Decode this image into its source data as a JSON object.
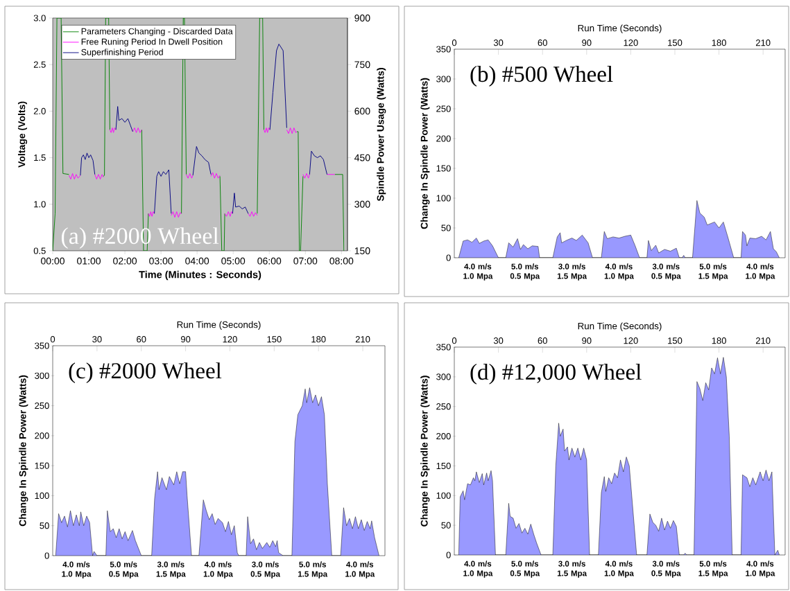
{
  "chart_data": [
    {
      "type": "line",
      "title": "(a) #2000 Wheel",
      "xlabel": "Time (Minutes : Seconds)",
      "ylabel": "Voltage (Volts)",
      "y2label": "Spindle Power Usage (Watts)",
      "xlim": [
        0,
        490
      ],
      "ylim": [
        0.5,
        3.0
      ],
      "y2lim": [
        150,
        900
      ],
      "xticks": [
        {
          "value": 0,
          "label": "00:00"
        },
        {
          "value": 60,
          "label": "01:00"
        },
        {
          "value": 120,
          "label": "02:00"
        },
        {
          "value": 180,
          "label": "03:00"
        },
        {
          "value": 240,
          "label": "04:00"
        },
        {
          "value": 300,
          "label": "05:00"
        },
        {
          "value": 360,
          "label": "06:00"
        },
        {
          "value": 420,
          "label": "07:00"
        },
        {
          "value": 480,
          "label": "08:00"
        }
      ],
      "yticks": [
        0.5,
        {
          "value": 1,
          "label": "1.0"
        },
        1.5,
        {
          "value": 2,
          "label": "2.0"
        },
        2.5,
        {
          "value": 3,
          "label": "3.0"
        }
      ],
      "y2ticks": [
        150,
        300,
        450,
        600,
        750,
        900
      ],
      "legend": "top left",
      "series": [
        {
          "name": "Parameters Changing - Discarded Data",
          "color": "#008000",
          "x": [
            0,
            4,
            7,
            14,
            17,
            27,
            27.5,
            84,
            86,
            88,
            93,
            95,
            95.5,
            148,
            151,
            157,
            159,
            159.5,
            214,
            217,
            219,
            222,
            222.5,
            278,
            281,
            285,
            286,
            286.5,
            340,
            344,
            349,
            351,
            351.5,
            406,
            408,
            410,
            412,
            416,
            416.5,
            469,
            482,
            484
          ],
          "values": [
            0.5,
            0.9,
            3.0,
            3.0,
            1.33,
            1.32,
            null,
            1.3,
            1.31,
            3.0,
            3.0,
            1.8,
            null,
            1.8,
            0.5,
            0.5,
            0.9,
            null,
            0.9,
            3.0,
            3.0,
            1.32,
            null,
            1.3,
            0.5,
            0.5,
            0.9,
            null,
            0.9,
            3.0,
            3.0,
            1.8,
            null,
            1.78,
            1.78,
            0.5,
            0.5,
            1.3,
            null,
            1.32,
            1.32,
            0.5
          ]
        },
        {
          "name": "Free Runing Period In Dwell Position",
          "color": "#ff00ff",
          "x": [
            27,
            30,
            33,
            36,
            39,
            42,
            46,
            46.5,
            70,
            73,
            76,
            79,
            82,
            84,
            84.5,
            95,
            97,
            99,
            101,
            103,
            105,
            105.5,
            133,
            136,
            139,
            142,
            145,
            148,
            148.5,
            159,
            161,
            163,
            165,
            167,
            169,
            169.5,
            197,
            200,
            203,
            206,
            209,
            212,
            214,
            214.5,
            222,
            225,
            228,
            231,
            233,
            233.5,
            263,
            266,
            269,
            272,
            275,
            278,
            278.5,
            286,
            289,
            292,
            295,
            297,
            299,
            299.5,
            325,
            328,
            331,
            334,
            337,
            340,
            340.5,
            351,
            353,
            355,
            357,
            359,
            361,
            361.5,
            389,
            392,
            395,
            398,
            401,
            404,
            406,
            406.5,
            416,
            419,
            422,
            425,
            427,
            427.5,
            456,
            469
          ],
          "values": [
            1.31,
            1.27,
            1.33,
            1.27,
            1.32,
            1.28,
            1.31,
            null,
            1.32,
            1.27,
            1.32,
            1.27,
            1.32,
            1.29,
            null,
            1.8,
            1.77,
            1.82,
            1.77,
            1.82,
            1.8,
            null,
            1.78,
            1.82,
            1.77,
            1.82,
            1.77,
            1.8,
            null,
            0.9,
            0.87,
            0.92,
            0.87,
            0.92,
            0.9,
            null,
            0.88,
            0.92,
            0.86,
            0.92,
            0.86,
            0.91,
            0.9,
            null,
            1.32,
            1.28,
            1.33,
            1.28,
            1.31,
            null,
            1.3,
            1.34,
            1.28,
            1.33,
            1.28,
            1.31,
            null,
            0.9,
            0.87,
            0.92,
            0.87,
            0.92,
            0.9,
            null,
            0.9,
            0.87,
            0.92,
            0.87,
            0.91,
            0.88,
            null,
            1.8,
            1.77,
            1.82,
            1.77,
            1.82,
            1.8,
            null,
            1.8,
            1.76,
            1.82,
            1.76,
            1.82,
            1.77,
            1.78,
            null,
            1.32,
            1.28,
            1.33,
            1.28,
            1.32,
            null,
            1.32,
            1.32
          ]
        },
        {
          "name": "Superfinishing Period",
          "color": "#000080",
          "x": [
            46,
            48,
            51,
            54,
            57,
            60,
            63,
            67,
            70,
            70.5,
            105,
            108,
            110,
            115,
            120,
            125,
            129,
            133,
            133.5,
            169,
            173,
            176,
            180,
            184,
            188,
            193,
            197,
            197.5,
            233,
            239,
            243,
            248,
            253,
            259,
            263,
            263.5,
            299,
            302,
            304,
            310,
            315,
            320,
            325,
            325.5,
            361,
            366,
            372,
            376,
            380,
            383,
            389,
            389.5,
            427,
            430,
            435,
            440,
            445,
            450,
            456
          ],
          "values": [
            1.31,
            1.5,
            1.53,
            1.48,
            1.55,
            1.5,
            1.53,
            1.47,
            1.32,
            null,
            1.8,
            2.05,
            1.9,
            1.92,
            1.88,
            1.92,
            1.85,
            1.78,
            null,
            0.9,
            1.3,
            1.35,
            1.3,
            1.35,
            1.32,
            1.37,
            0.9,
            null,
            1.31,
            1.62,
            1.55,
            1.52,
            1.48,
            1.45,
            1.32,
            null,
            0.9,
            1.12,
            0.97,
            0.98,
            0.95,
            0.97,
            0.9,
            null,
            1.8,
            2.2,
            2.65,
            2.72,
            2.68,
            2.65,
            1.82,
            null,
            1.32,
            1.57,
            1.52,
            1.5,
            1.52,
            1.48,
            1.32
          ]
        }
      ]
    },
    {
      "type": "area",
      "title": "(b) #500 Wheel",
      "xlabel": "Run Time (Seconds)",
      "ylabel": "Change In Spindle Power (Watts)",
      "xlim": [
        0,
        225
      ],
      "ylim": [
        0,
        350
      ],
      "xticks": [
        0,
        30,
        60,
        90,
        120,
        150,
        180,
        210
      ],
      "yticks": [
        0,
        50,
        100,
        150,
        200,
        250,
        300,
        350
      ],
      "annotations": [
        {
          "text": "4.0 m/s 1.0 Mpa",
          "x": 16,
          "y": 0
        },
        {
          "text": "5.0 m/s 0.5 Mpa",
          "x": 48,
          "y": 0
        },
        {
          "text": "3.0 m/s 1.5 Mpa",
          "x": 80,
          "y": 0
        },
        {
          "text": "4.0 m/s 1.0 Mpa",
          "x": 112,
          "y": 0
        },
        {
          "text": "3.0 m/s 0.5 Mpa",
          "x": 144,
          "y": 0
        },
        {
          "text": "5.0 m/s 1.5 Mpa",
          "x": 176,
          "y": 0
        },
        {
          "text": "4.0 m/s 1.0 Mpa",
          "x": 208,
          "y": 0
        }
      ],
      "color": "#9999ff",
      "x": [
        3,
        6,
        9,
        12,
        15,
        17,
        20,
        23,
        26,
        30,
        35,
        37,
        40,
        43,
        45,
        47,
        50,
        53,
        57,
        58,
        67,
        70,
        72,
        73,
        77,
        80,
        83,
        87,
        91,
        94,
        100,
        102,
        104,
        108,
        112,
        116,
        120,
        123,
        126,
        131,
        132,
        134,
        137,
        139,
        143,
        147,
        151,
        153,
        155,
        156,
        157,
        162,
        165,
        167,
        170,
        172,
        177,
        180,
        183,
        186,
        190,
        195,
        196,
        198,
        199,
        201,
        205,
        209,
        212,
        215,
        217,
        219,
        221
      ],
      "values": [
        0,
        28,
        30,
        26,
        33,
        24,
        28,
        30,
        20,
        0,
        0,
        25,
        18,
        32,
        14,
        22,
        15,
        20,
        19,
        0,
        0,
        35,
        42,
        25,
        30,
        33,
        29,
        38,
        25,
        0,
        0,
        44,
        32,
        35,
        33,
        36,
        38,
        20,
        0,
        0,
        29,
        12,
        21,
        8,
        14,
        11,
        16,
        0,
        0,
        4,
        0,
        0,
        96,
        75,
        68,
        55,
        60,
        50,
        60,
        35,
        0,
        0,
        44,
        38,
        20,
        33,
        32,
        36,
        30,
        44,
        15,
        10,
        0
      ]
    },
    {
      "type": "area",
      "title": "(c) #2000 Wheel",
      "xlabel": "Run Time (Seconds)",
      "ylabel": "Change In Spindle Power (Watts)",
      "xlim": [
        0,
        225
      ],
      "ylim": [
        0,
        350
      ],
      "xticks": [
        0,
        30,
        60,
        90,
        120,
        150,
        180,
        210
      ],
      "yticks": [
        0,
        50,
        100,
        150,
        200,
        250,
        300,
        350
      ],
      "annotations": [
        {
          "text": "4.0 m/s 1.0 Mpa",
          "x": 16,
          "y": 0
        },
        {
          "text": "5.0 m/s 0.5 Mpa",
          "x": 48,
          "y": 0
        },
        {
          "text": "3.0 m/s 1.5 Mpa",
          "x": 80,
          "y": 0
        },
        {
          "text": "4.0 m/s 1.0 Mpa",
          "x": 112,
          "y": 0
        },
        {
          "text": "3.0 m/s 0.5 Mpa",
          "x": 144,
          "y": 0
        },
        {
          "text": "5.0 m/s 1.5 Mpa",
          "x": 176,
          "y": 0
        },
        {
          "text": "4.0 m/s 1.0 Mpa",
          "x": 208,
          "y": 0
        }
      ],
      "color": "#9999ff",
      "x": [
        2,
        4,
        6,
        8,
        10,
        12,
        14,
        16,
        18,
        19,
        21,
        23,
        25,
        27,
        28,
        30,
        36,
        37,
        39,
        41,
        43,
        45,
        47,
        49,
        51,
        54,
        56,
        60,
        67,
        69,
        71,
        72,
        74,
        77,
        79,
        82,
        84,
        86,
        88,
        90,
        91,
        94,
        99,
        102,
        104,
        106,
        108,
        110,
        112,
        115,
        117,
        119,
        121,
        123,
        125,
        126,
        131,
        132,
        134,
        136,
        138,
        140,
        142,
        145,
        147,
        149,
        151,
        152,
        153,
        156,
        162,
        164,
        166,
        169,
        171,
        172,
        174,
        176,
        178,
        180,
        182,
        184,
        186,
        189,
        195,
        197,
        199,
        201,
        203,
        205,
        207,
        209,
        211,
        213,
        215,
        216,
        218,
        221
      ],
      "values": [
        0,
        70,
        55,
        66,
        48,
        75,
        50,
        68,
        50,
        73,
        50,
        66,
        55,
        0,
        7,
        0,
        0,
        75,
        40,
        45,
        30,
        45,
        28,
        40,
        25,
        42,
        25,
        0,
        0,
        95,
        140,
        110,
        130,
        110,
        132,
        118,
        140,
        120,
        140,
        140,
        100,
        0,
        0,
        93,
        75,
        60,
        70,
        52,
        62,
        55,
        40,
        57,
        35,
        50,
        5,
        0,
        0,
        65,
        20,
        28,
        10,
        22,
        12,
        22,
        14,
        25,
        15,
        25,
        5,
        0,
        0,
        190,
        235,
        250,
        278,
        255,
        280,
        255,
        268,
        250,
        265,
        235,
        120,
        0,
        0,
        80,
        50,
        62,
        45,
        65,
        45,
        60,
        42,
        57,
        45,
        58,
        30,
        0
      ]
    },
    {
      "type": "area",
      "title": "(d) #12,000 Wheel",
      "xlabel": "Run Time (Seconds)",
      "ylabel": "Change In Spindle Power (Watts)",
      "xlim": [
        0,
        225
      ],
      "ylim": [
        0,
        350
      ],
      "xticks": [
        0,
        30,
        60,
        90,
        120,
        150,
        180,
        210
      ],
      "yticks": [
        0,
        50,
        100,
        150,
        200,
        250,
        300,
        350
      ],
      "annotations": [
        {
          "text": "4.0 m/s 1.0 Mpa",
          "x": 16,
          "y": 0
        },
        {
          "text": "5.0 m/s 0.5 Mpa",
          "x": 48,
          "y": 0
        },
        {
          "text": "3.0 m/s 1.5 Mpa",
          "x": 80,
          "y": 0
        },
        {
          "text": "4.0 m/s 1.0 Mpa",
          "x": 112,
          "y": 0
        },
        {
          "text": "3.0 m/s 0.5 Mpa",
          "x": 144,
          "y": 0
        },
        {
          "text": "5.0 m/s 1.5 Mpa",
          "x": 176,
          "y": 0
        },
        {
          "text": "4.0 m/s 1.0 Mpa",
          "x": 208,
          "y": 0
        }
      ],
      "color": "#9999ff",
      "x": [
        3,
        4,
        6,
        7,
        9,
        11,
        13,
        14,
        15,
        17,
        19,
        20,
        22,
        23,
        25,
        26,
        28,
        35,
        37,
        38,
        40,
        42,
        44,
        46,
        48,
        50,
        52,
        54,
        56,
        59,
        67,
        69,
        71,
        72,
        74,
        75,
        77,
        78,
        80,
        82,
        84,
        86,
        88,
        90,
        92,
        98,
        100,
        102,
        103,
        105,
        107,
        109,
        111,
        113,
        115,
        117,
        119,
        124,
        131,
        133,
        135,
        137,
        139,
        141,
        143,
        145,
        147,
        149,
        151,
        153,
        156,
        157,
        158,
        163,
        165,
        167,
        169,
        171,
        173,
        175,
        177,
        179,
        181,
        183,
        185,
        187,
        189,
        195,
        196,
        199,
        201,
        203,
        205,
        208,
        210,
        212,
        214,
        216,
        218,
        220,
        221
      ],
      "values": [
        0,
        98,
        108,
        93,
        120,
        118,
        130,
        125,
        140,
        122,
        137,
        118,
        138,
        125,
        142,
        125,
        0,
        0,
        87,
        65,
        62,
        45,
        53,
        37,
        45,
        35,
        52,
        35,
        20,
        0,
        0,
        150,
        222,
        200,
        212,
        175,
        182,
        160,
        180,
        165,
        180,
        160,
        180,
        160,
        0,
        0,
        105,
        132,
        107,
        130,
        120,
        138,
        130,
        160,
        140,
        165,
        150,
        0,
        0,
        69,
        55,
        50,
        40,
        62,
        42,
        57,
        45,
        58,
        48,
        0,
        0,
        3,
        0,
        0,
        292,
        280,
        260,
        290,
        278,
        315,
        305,
        332,
        305,
        333,
        300,
        200,
        0,
        0,
        135,
        130,
        115,
        130,
        118,
        140,
        125,
        143,
        125,
        140,
        0,
        8,
        0
      ]
    }
  ]
}
